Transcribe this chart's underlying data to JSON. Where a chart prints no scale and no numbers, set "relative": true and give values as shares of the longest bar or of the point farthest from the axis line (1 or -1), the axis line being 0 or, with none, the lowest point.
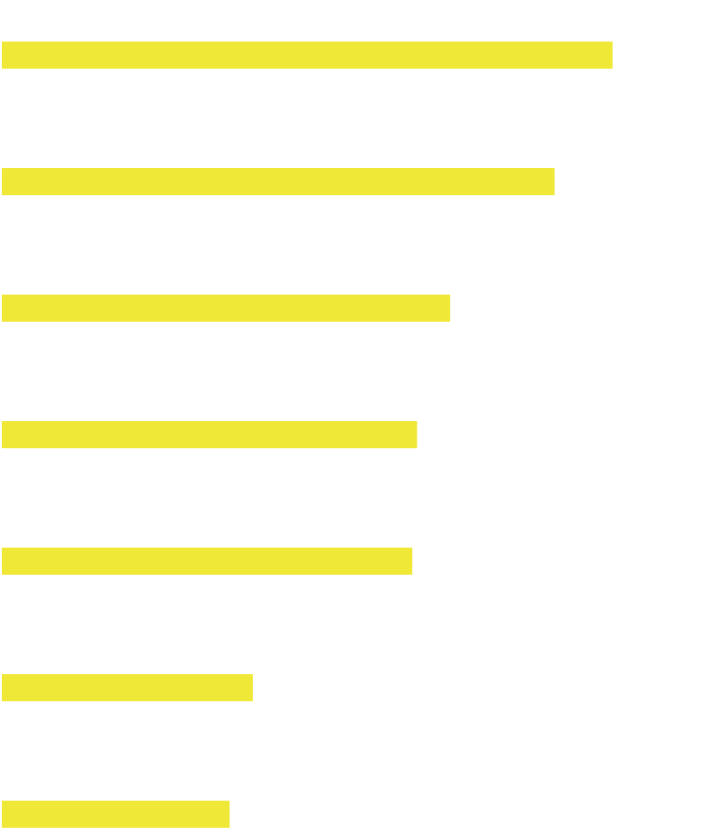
{
  "chart_data": {
    "type": "bar",
    "orientation": "horizontal",
    "relative": true,
    "categories": [
      null,
      null,
      null,
      null,
      null,
      null,
      null
    ],
    "values": [
      1,
      0.905,
      0.734,
      0.68,
      0.672,
      0.411,
      0.373
    ],
    "color": "#f0e836"
  }
}
